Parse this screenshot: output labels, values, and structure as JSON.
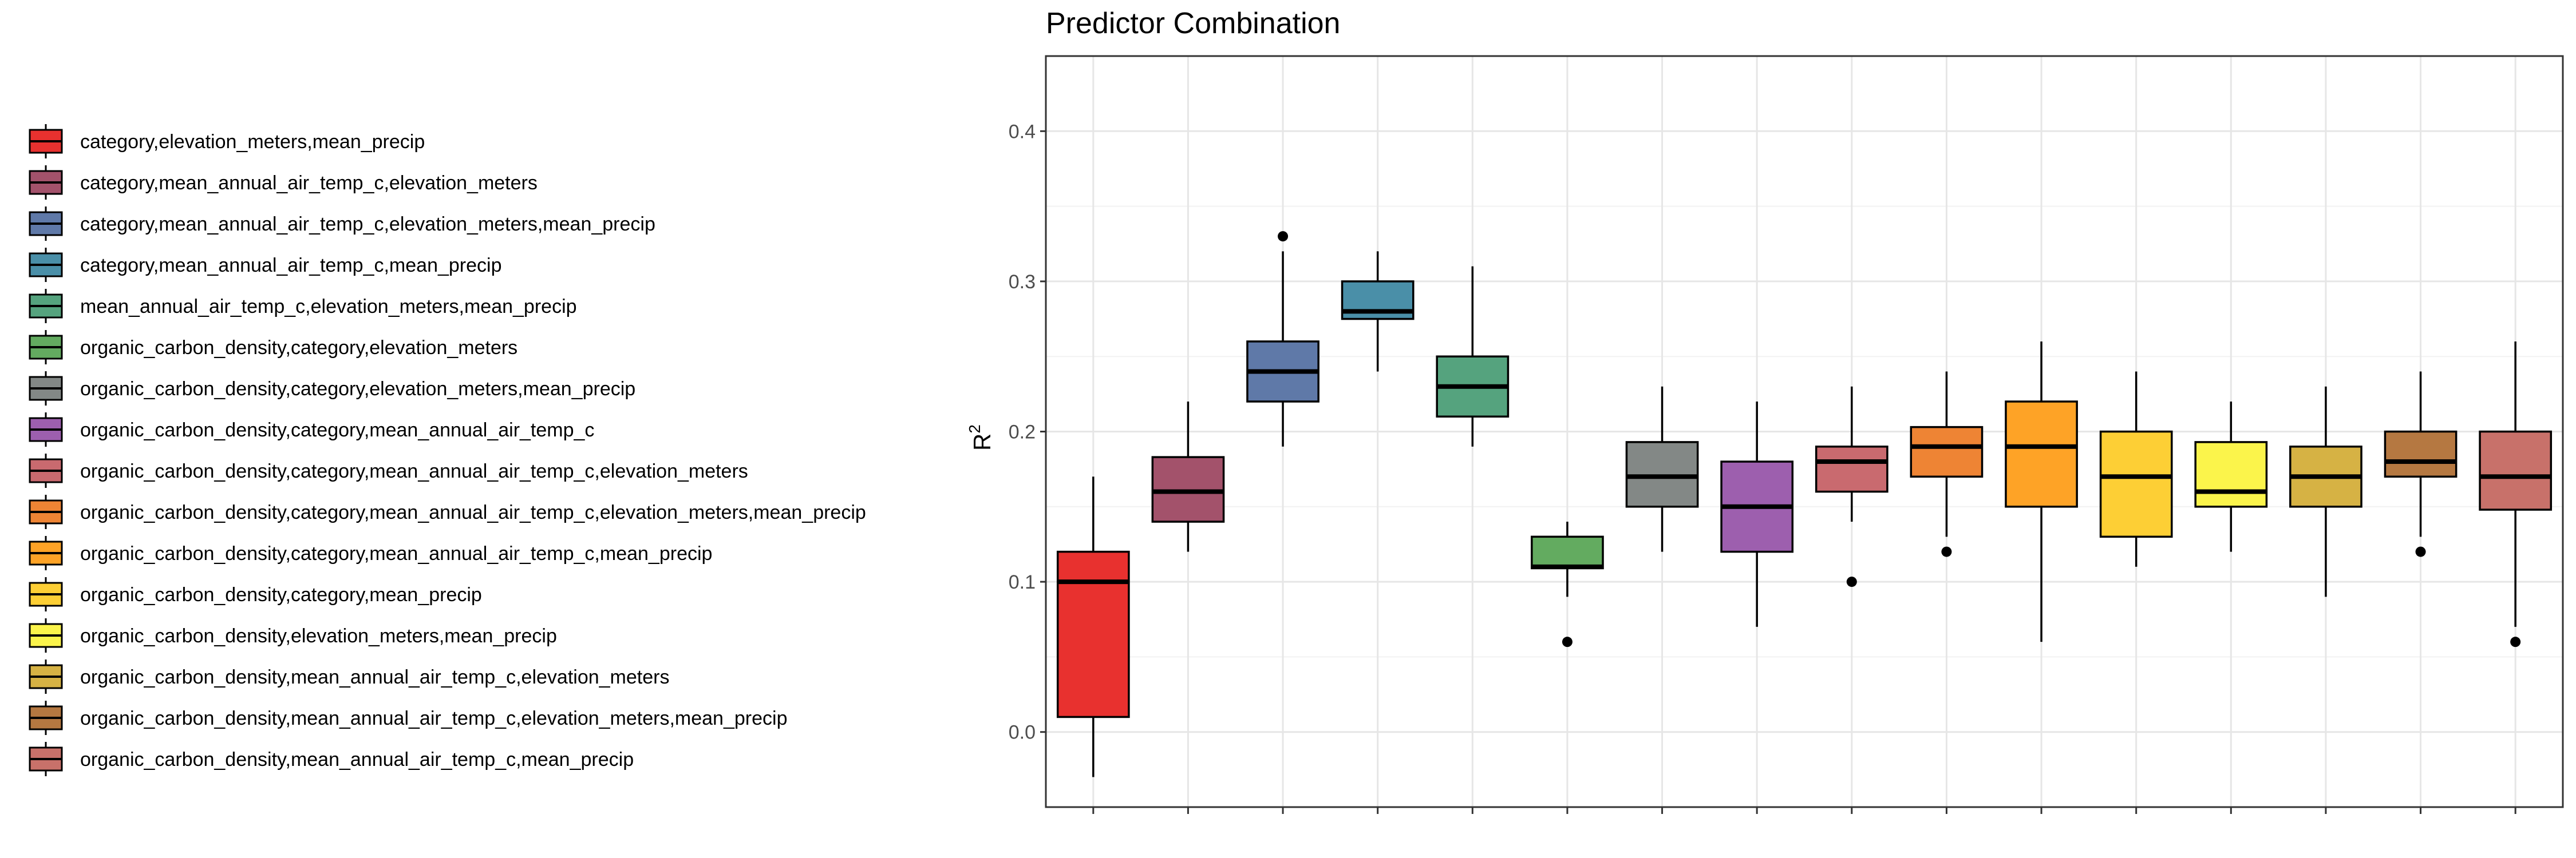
{
  "chart_data": {
    "type": "boxplot",
    "title": "Predictor Combination",
    "xlabel": "",
    "ylabel": "R",
    "ylabel_superscript": "2",
    "ylim": [
      -0.05,
      0.45
    ],
    "yticks": [
      0.0,
      0.1,
      0.2,
      0.3,
      0.4
    ],
    "ytick_labels": [
      "0.0",
      "0.1",
      "0.2",
      "0.3",
      "0.4"
    ],
    "grid": true,
    "legend_position": "left",
    "series": [
      {
        "name": "category,elevation_meters,mean_precip",
        "color": "#e8312f",
        "whisker_low": -0.03,
        "q1": 0.01,
        "median": 0.1,
        "q3": 0.12,
        "whisker_high": 0.17,
        "outliers": []
      },
      {
        "name": "category,mean_annual_air_temp_c,elevation_meters",
        "color": "#a3526b",
        "whisker_low": 0.12,
        "q1": 0.14,
        "median": 0.16,
        "q3": 0.183,
        "whisker_high": 0.22,
        "outliers": []
      },
      {
        "name": "category,mean_annual_air_temp_c,elevation_meters,mean_precip",
        "color": "#5f79a8",
        "whisker_low": 0.19,
        "q1": 0.22,
        "median": 0.24,
        "q3": 0.26,
        "whisker_high": 0.32,
        "outliers": [
          0.33
        ]
      },
      {
        "name": "category,mean_annual_air_temp_c,mean_precip",
        "color": "#4a8fa8",
        "whisker_low": 0.24,
        "q1": 0.275,
        "median": 0.28,
        "q3": 0.3,
        "whisker_high": 0.32,
        "outliers": []
      },
      {
        "name": "mean_annual_air_temp_c,elevation_meters,mean_precip",
        "color": "#55a37e",
        "whisker_low": 0.19,
        "q1": 0.21,
        "median": 0.23,
        "q3": 0.25,
        "whisker_high": 0.31,
        "outliers": []
      },
      {
        "name": "organic_carbon_density,category,elevation_meters",
        "color": "#63ab60",
        "whisker_low": 0.09,
        "q1": 0.109,
        "median": 0.11,
        "q3": 0.13,
        "whisker_high": 0.14,
        "outliers": [
          0.06
        ]
      },
      {
        "name": "organic_carbon_density,category,elevation_meters,mean_precip",
        "color": "#838886",
        "whisker_low": 0.12,
        "q1": 0.15,
        "median": 0.17,
        "q3": 0.193,
        "whisker_high": 0.23,
        "outliers": []
      },
      {
        "name": "organic_carbon_density,category,mean_annual_air_temp_c",
        "color": "#9d5fae",
        "whisker_low": 0.07,
        "q1": 0.12,
        "median": 0.15,
        "q3": 0.18,
        "whisker_high": 0.22,
        "outliers": []
      },
      {
        "name": "organic_carbon_density,category,mean_annual_air_temp_c,elevation_meters",
        "color": "#c96a6f",
        "whisker_low": 0.14,
        "q1": 0.16,
        "median": 0.18,
        "q3": 0.19,
        "whisker_high": 0.23,
        "outliers": [
          0.1
        ]
      },
      {
        "name": "organic_carbon_density,category,mean_annual_air_temp_c,elevation_meters,mean_precip",
        "color": "#ee8434",
        "whisker_low": 0.13,
        "q1": 0.17,
        "median": 0.19,
        "q3": 0.203,
        "whisker_high": 0.24,
        "outliers": [
          0.12
        ]
      },
      {
        "name": "organic_carbon_density,category,mean_annual_air_temp_c,mean_precip",
        "color": "#fea326",
        "whisker_low": 0.06,
        "q1": 0.15,
        "median": 0.19,
        "q3": 0.22,
        "whisker_high": 0.26,
        "outliers": []
      },
      {
        "name": "organic_carbon_density,category,mean_precip",
        "color": "#fdcf35",
        "whisker_low": 0.11,
        "q1": 0.13,
        "median": 0.17,
        "q3": 0.2,
        "whisker_high": 0.24,
        "outliers": []
      },
      {
        "name": "organic_carbon_density,elevation_meters,mean_precip",
        "color": "#fbf44b",
        "whisker_low": 0.12,
        "q1": 0.15,
        "median": 0.16,
        "q3": 0.193,
        "whisker_high": 0.22,
        "outliers": []
      },
      {
        "name": "organic_carbon_density,mean_annual_air_temp_c,elevation_meters",
        "color": "#d6b244",
        "whisker_low": 0.09,
        "q1": 0.15,
        "median": 0.17,
        "q3": 0.19,
        "whisker_high": 0.23,
        "outliers": []
      },
      {
        "name": "organic_carbon_density,mean_annual_air_temp_c,elevation_meters,mean_precip",
        "color": "#b57841",
        "whisker_low": 0.13,
        "q1": 0.17,
        "median": 0.18,
        "q3": 0.2,
        "whisker_high": 0.24,
        "outliers": [
          0.12
        ]
      },
      {
        "name": "organic_carbon_density,mean_annual_air_temp_c,mean_precip",
        "color": "#c8716a",
        "whisker_low": 0.07,
        "q1": 0.148,
        "median": 0.17,
        "q3": 0.2,
        "whisker_high": 0.26,
        "outliers": [
          0.06
        ]
      }
    ]
  }
}
